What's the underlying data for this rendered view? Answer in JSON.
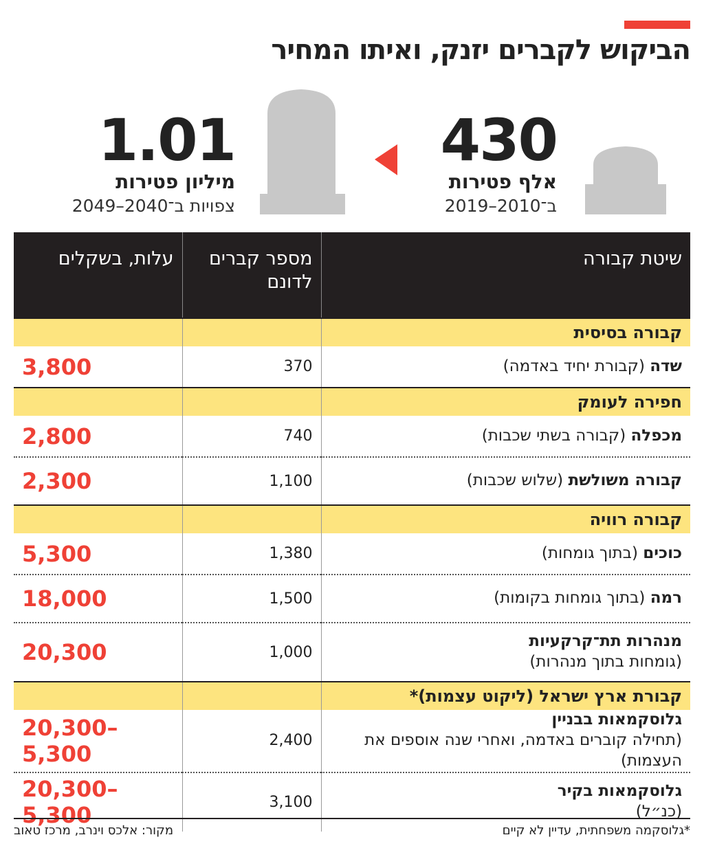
{
  "header": {
    "title": "הביקוש לקברים יזנק, ואיתו המחיר"
  },
  "stats": [
    {
      "number": "430",
      "label": "אלף פטירות",
      "period": "ב־2010–2019"
    },
    {
      "number": "1.01",
      "label": "מיליון פטירות",
      "period": "צפויות ב־2040–2049"
    }
  ],
  "table": {
    "headers": [
      "שיטת קבורה",
      "מספר קברים לדונם",
      "עלות, בשקלים"
    ],
    "groups": [
      {
        "title": "קבורה בסיסית",
        "rows": [
          {
            "name": "שדה",
            "detail": "(קבורת יחיד באדמה)",
            "graves": "370",
            "cost": "3,800"
          }
        ]
      },
      {
        "title": "חפירה לעומק",
        "rows": [
          {
            "name": "מכפלה",
            "detail": "(קבורה בשתי שכבות)",
            "graves": "740",
            "cost": "2,800"
          },
          {
            "name": "קבורה משולשת",
            "detail": "(שלוש שכבות)",
            "graves": "1,100",
            "cost": "2,300"
          }
        ]
      },
      {
        "title": "קבורה רוויה",
        "rows": [
          {
            "name": "כוכים",
            "detail": "(בתוך גומחות)",
            "graves": "1,380",
            "cost": "5,300"
          },
          {
            "name": "רמה",
            "detail": "(בתוך גומחות בקומות)",
            "graves": "1,500",
            "cost": "18,000"
          },
          {
            "name": "מנהרות תת־קרקעיות",
            "detail": "(גומחות בתוך מנהרות)",
            "graves": "1,000",
            "cost": "20,300"
          }
        ]
      },
      {
        "title": "קבורת ארץ ישראל (ליקוט עצמות)*",
        "rows": [
          {
            "name": "גלוסקמאות בבניין",
            "detail": "(תחילה קוברים באדמה, ואחרי שנה אוספים את העצמות)",
            "graves": "2,400",
            "cost": "20,300–5,300"
          },
          {
            "name": "גלוסקמאות בקיר",
            "detail": "(כנ״ל)",
            "graves": "3,100",
            "cost": "20,300–5,300"
          }
        ]
      }
    ]
  },
  "footer": {
    "note": "*גלוסקמה משפחתית, עדיין לא קיים",
    "source": "מקור: אלכס וינרב, מרכז טאוב"
  }
}
